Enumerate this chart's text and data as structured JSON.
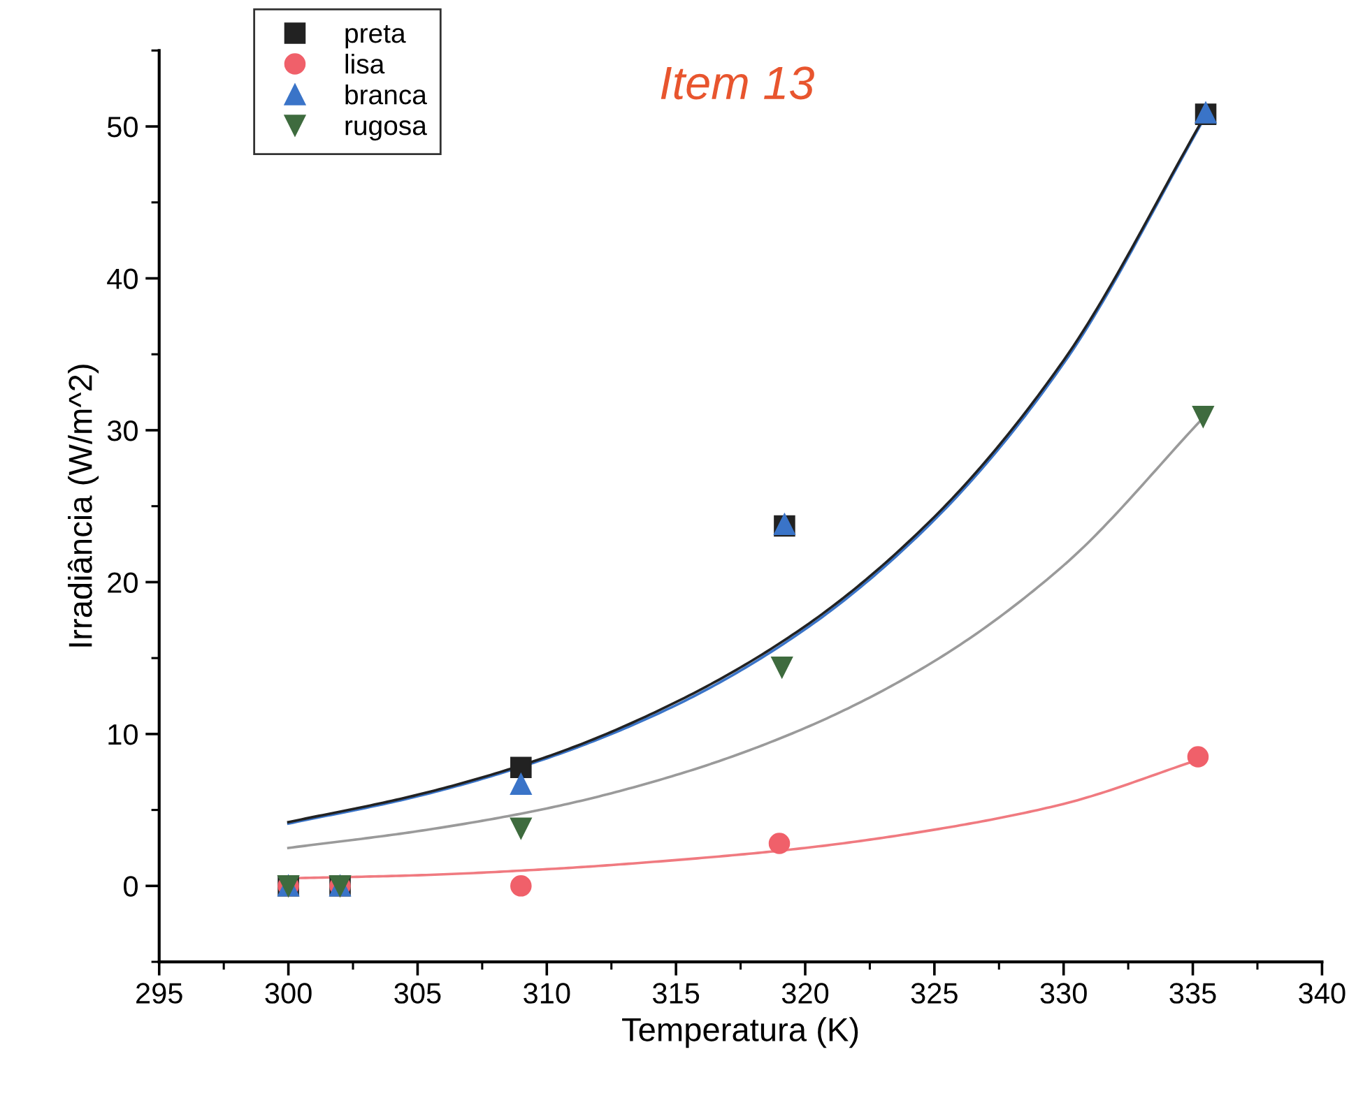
{
  "chart_data": {
    "type": "scatter",
    "xlabel": "Temperatura (K)",
    "ylabel": "Irradiância (W/m^2)",
    "annotations": [
      "Item 13"
    ],
    "xlim": [
      295,
      340
    ],
    "xticks": [
      295,
      300,
      305,
      310,
      315,
      320,
      325,
      330,
      335,
      340
    ],
    "ylim": [
      -5,
      55
    ],
    "yticks": [
      0,
      10,
      20,
      30,
      40,
      50
    ],
    "grid": false,
    "legend": "top left",
    "series": [
      {
        "type": "line",
        "color": "#9a9a9a",
        "x": [
          300,
          305,
          310,
          315,
          320,
          325,
          330,
          335.5
        ],
        "values": [
          2.5,
          3.6,
          5.1,
          7.3,
          10.4,
          14.8,
          21.1,
          31
        ],
        "marker": "none",
        "line_style": "solid"
      },
      {
        "type": "line",
        "color": "#f07a80",
        "x": [
          300,
          305,
          310,
          315,
          320,
          325,
          330,
          335.2
        ],
        "values": [
          0.5,
          0.7,
          1.1,
          1.7,
          2.5,
          3.7,
          5.4,
          8.3
        ],
        "marker": "none",
        "line_style": "solid"
      },
      {
        "type": "line",
        "color": "#3a74c8",
        "x": [
          300,
          305,
          310,
          315,
          320,
          325,
          330,
          335.5
        ],
        "values": [
          4.1,
          5.9,
          8.4,
          11.9,
          16.9,
          24.1,
          34.4,
          50.7
        ],
        "marker": "none",
        "line_style": "solid"
      },
      {
        "type": "line",
        "color": "#222222",
        "x": [
          300,
          305,
          310,
          315,
          320,
          325,
          330,
          335.5
        ],
        "values": [
          4.2,
          6.0,
          8.5,
          12.1,
          17.1,
          24.3,
          34.6,
          50.8
        ],
        "marker": "none",
        "line_style": "solid"
      },
      {
        "name": "preta",
        "color": "#222222",
        "marker": "square",
        "x": [
          300,
          302,
          309,
          319.2,
          335.5
        ],
        "values": [
          0,
          0,
          7.8,
          23.7,
          50.8
        ]
      },
      {
        "name": "lisa",
        "color": "#f0606a",
        "marker": "circle",
        "x": [
          300,
          302,
          309,
          319,
          335.2
        ],
        "values": [
          0,
          0,
          0,
          2.8,
          8.5
        ]
      },
      {
        "name": "branca",
        "color": "#3a74c8",
        "marker": "triangle",
        "x": [
          300,
          302,
          309,
          319.2,
          335.5
        ],
        "values": [
          0,
          0,
          6.7,
          23.8,
          50.9
        ]
      },
      {
        "name": "rugosa",
        "color": "#3e6b3e",
        "marker": "triangle_down",
        "x": [
          300,
          302,
          309,
          319.1,
          335.4
        ],
        "values": [
          0,
          0,
          3.8,
          14.4,
          30.9
        ]
      }
    ]
  }
}
